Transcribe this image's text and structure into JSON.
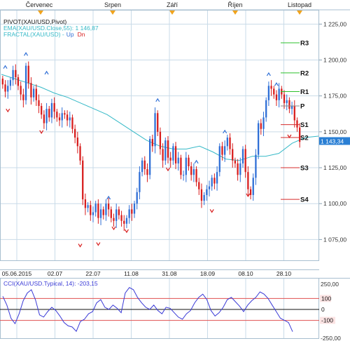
{
  "top_axis": {
    "months": [
      "Červenec",
      "Srpen",
      "Září",
      "Říjen",
      "Listopad"
    ]
  },
  "legend": {
    "pivot": "PIVOT(XAU/USD,Pivot)",
    "ema": "EMA(XAU/USD.Close,55): 1 146,87",
    "fractal": "FRACTAL(XAU/USD) -",
    "fractal_up": "Up",
    "fractal_dn": "Dn"
  },
  "price_badge": "1 143,34",
  "colors": {
    "up_candle": "#2f6fd6",
    "down_candle": "#d81d1d",
    "ema": "#35b9c7",
    "resistance": "#2cc12c",
    "support": "#d62b2b",
    "pivot": "#888888",
    "cci": "#3a3ad6",
    "badge_bg": "#2a7fd4",
    "grid": "#c9dbe8"
  },
  "chart_data": [
    {
      "type": "candlestick",
      "title": "",
      "x_labels": [
        "05.06.2015",
        "02.07",
        "22.07",
        "11.08",
        "31.08",
        "18.09",
        "08.10",
        "28.10"
      ],
      "ylim": [
        1062,
        1232
      ],
      "y_ticks": [
        {
          "v": 1225,
          "label": "1 225,00"
        },
        {
          "v": 1200,
          "label": "1 200,00"
        },
        {
          "v": 1175,
          "label": "1 175,00"
        },
        {
          "v": 1150,
          "label": "1 150,00"
        },
        {
          "v": 1125,
          "label": "1 125,00"
        },
        {
          "v": 1100,
          "label": "1 100,00"
        },
        {
          "v": 1075,
          "label": "1 075,00"
        }
      ],
      "pivot_levels": [
        {
          "name": "R3",
          "value": 1212
        },
        {
          "name": "R2",
          "value": 1191
        },
        {
          "name": "R1",
          "value": 1178
        },
        {
          "name": "P",
          "value": 1168
        },
        {
          "name": "S1",
          "value": 1155
        },
        {
          "name": "S2",
          "value": 1146
        },
        {
          "name": "S3",
          "value": 1125
        },
        {
          "name": "S4",
          "value": 1103
        }
      ],
      "last_price": 1143.34,
      "closes": [
        1183,
        1178,
        1182,
        1186,
        1193,
        1188,
        1182,
        1176,
        1172,
        1196,
        1184,
        1174,
        1180,
        1172,
        1168,
        1162,
        1156,
        1166,
        1160,
        1170,
        1164,
        1160,
        1158,
        1163,
        1162,
        1158,
        1160,
        1152,
        1146,
        1140,
        1130,
        1103,
        1097,
        1099,
        1092,
        1094,
        1100,
        1090,
        1096,
        1092,
        1100,
        1096,
        1090,
        1088,
        1096,
        1092,
        1088,
        1086,
        1090,
        1096,
        1093,
        1100,
        1108,
        1122,
        1130,
        1124,
        1120,
        1145,
        1140,
        1163,
        1150,
        1138,
        1130,
        1144,
        1132,
        1130,
        1140,
        1128,
        1132,
        1120,
        1120,
        1132,
        1126,
        1120,
        1124,
        1115,
        1110,
        1102,
        1106,
        1110,
        1112,
        1118,
        1114,
        1122,
        1140,
        1134,
        1140,
        1146,
        1138,
        1130,
        1128,
        1120,
        1128,
        1138,
        1122,
        1110,
        1106,
        1118,
        1134,
        1156,
        1152,
        1160,
        1172,
        1182,
        1180,
        1176,
        1172,
        1180,
        1176,
        1170,
        1172,
        1166,
        1168,
        1158,
        1153,
        1143
      ],
      "ema": [
        1190,
        1187,
        1184,
        1181,
        1177,
        1174,
        1170,
        1166,
        1162,
        1156,
        1150,
        1144,
        1140,
        1138,
        1138,
        1140,
        1136,
        1131,
        1130,
        1133,
        1133,
        1135,
        1142,
        1146,
        1147
      ],
      "fractals_up": [
        [
          1,
          1195
        ],
        [
          9,
          1204
        ],
        [
          17,
          1191
        ],
        [
          41,
          1104
        ],
        [
          60,
          1172
        ],
        [
          75,
          1129
        ],
        [
          86,
          1150
        ],
        [
          103,
          1190
        ],
        [
          106,
          1183
        ]
      ],
      "fractals_dn": [
        [
          2,
          1165
        ],
        [
          15,
          1150
        ],
        [
          30,
          1071
        ],
        [
          37,
          1072
        ],
        [
          43,
          1083
        ],
        [
          48,
          1081
        ],
        [
          64,
          1124
        ],
        [
          81,
          1095
        ],
        [
          95,
          1106
        ],
        [
          111,
          1147
        ]
      ]
    },
    {
      "type": "line",
      "title": "CCI(XAU/USD.Typical, 14): -203,15",
      "ylim": [
        -250,
        250
      ],
      "y_ticks": [
        {
          "v": 250,
          "label": "250,00"
        },
        {
          "v": -250,
          "label": "-250,00"
        }
      ],
      "levels": [
        {
          "value": 100,
          "label": "100"
        },
        {
          "value": 0,
          "label": "0"
        },
        {
          "value": -100,
          "label": "-100"
        }
      ],
      "values": [
        120,
        40,
        -80,
        -130,
        -40,
        80,
        150,
        180,
        90,
        -50,
        -70,
        -20,
        20,
        -10,
        -60,
        -120,
        -150,
        -160,
        -200,
        -110,
        -90,
        -40,
        -20,
        60,
        90,
        20,
        0,
        40,
        10,
        -30,
        150,
        200,
        180,
        110,
        60,
        20,
        0,
        40,
        -10,
        -40,
        20,
        10,
        -30,
        -70,
        -90,
        -40,
        -10,
        60,
        110,
        140,
        90,
        -10,
        -60,
        -30,
        20,
        90,
        110,
        70,
        30,
        -20,
        40,
        80,
        110,
        160,
        140,
        100,
        40,
        -20,
        -80,
        -100,
        -120,
        -203
      ]
    }
  ]
}
